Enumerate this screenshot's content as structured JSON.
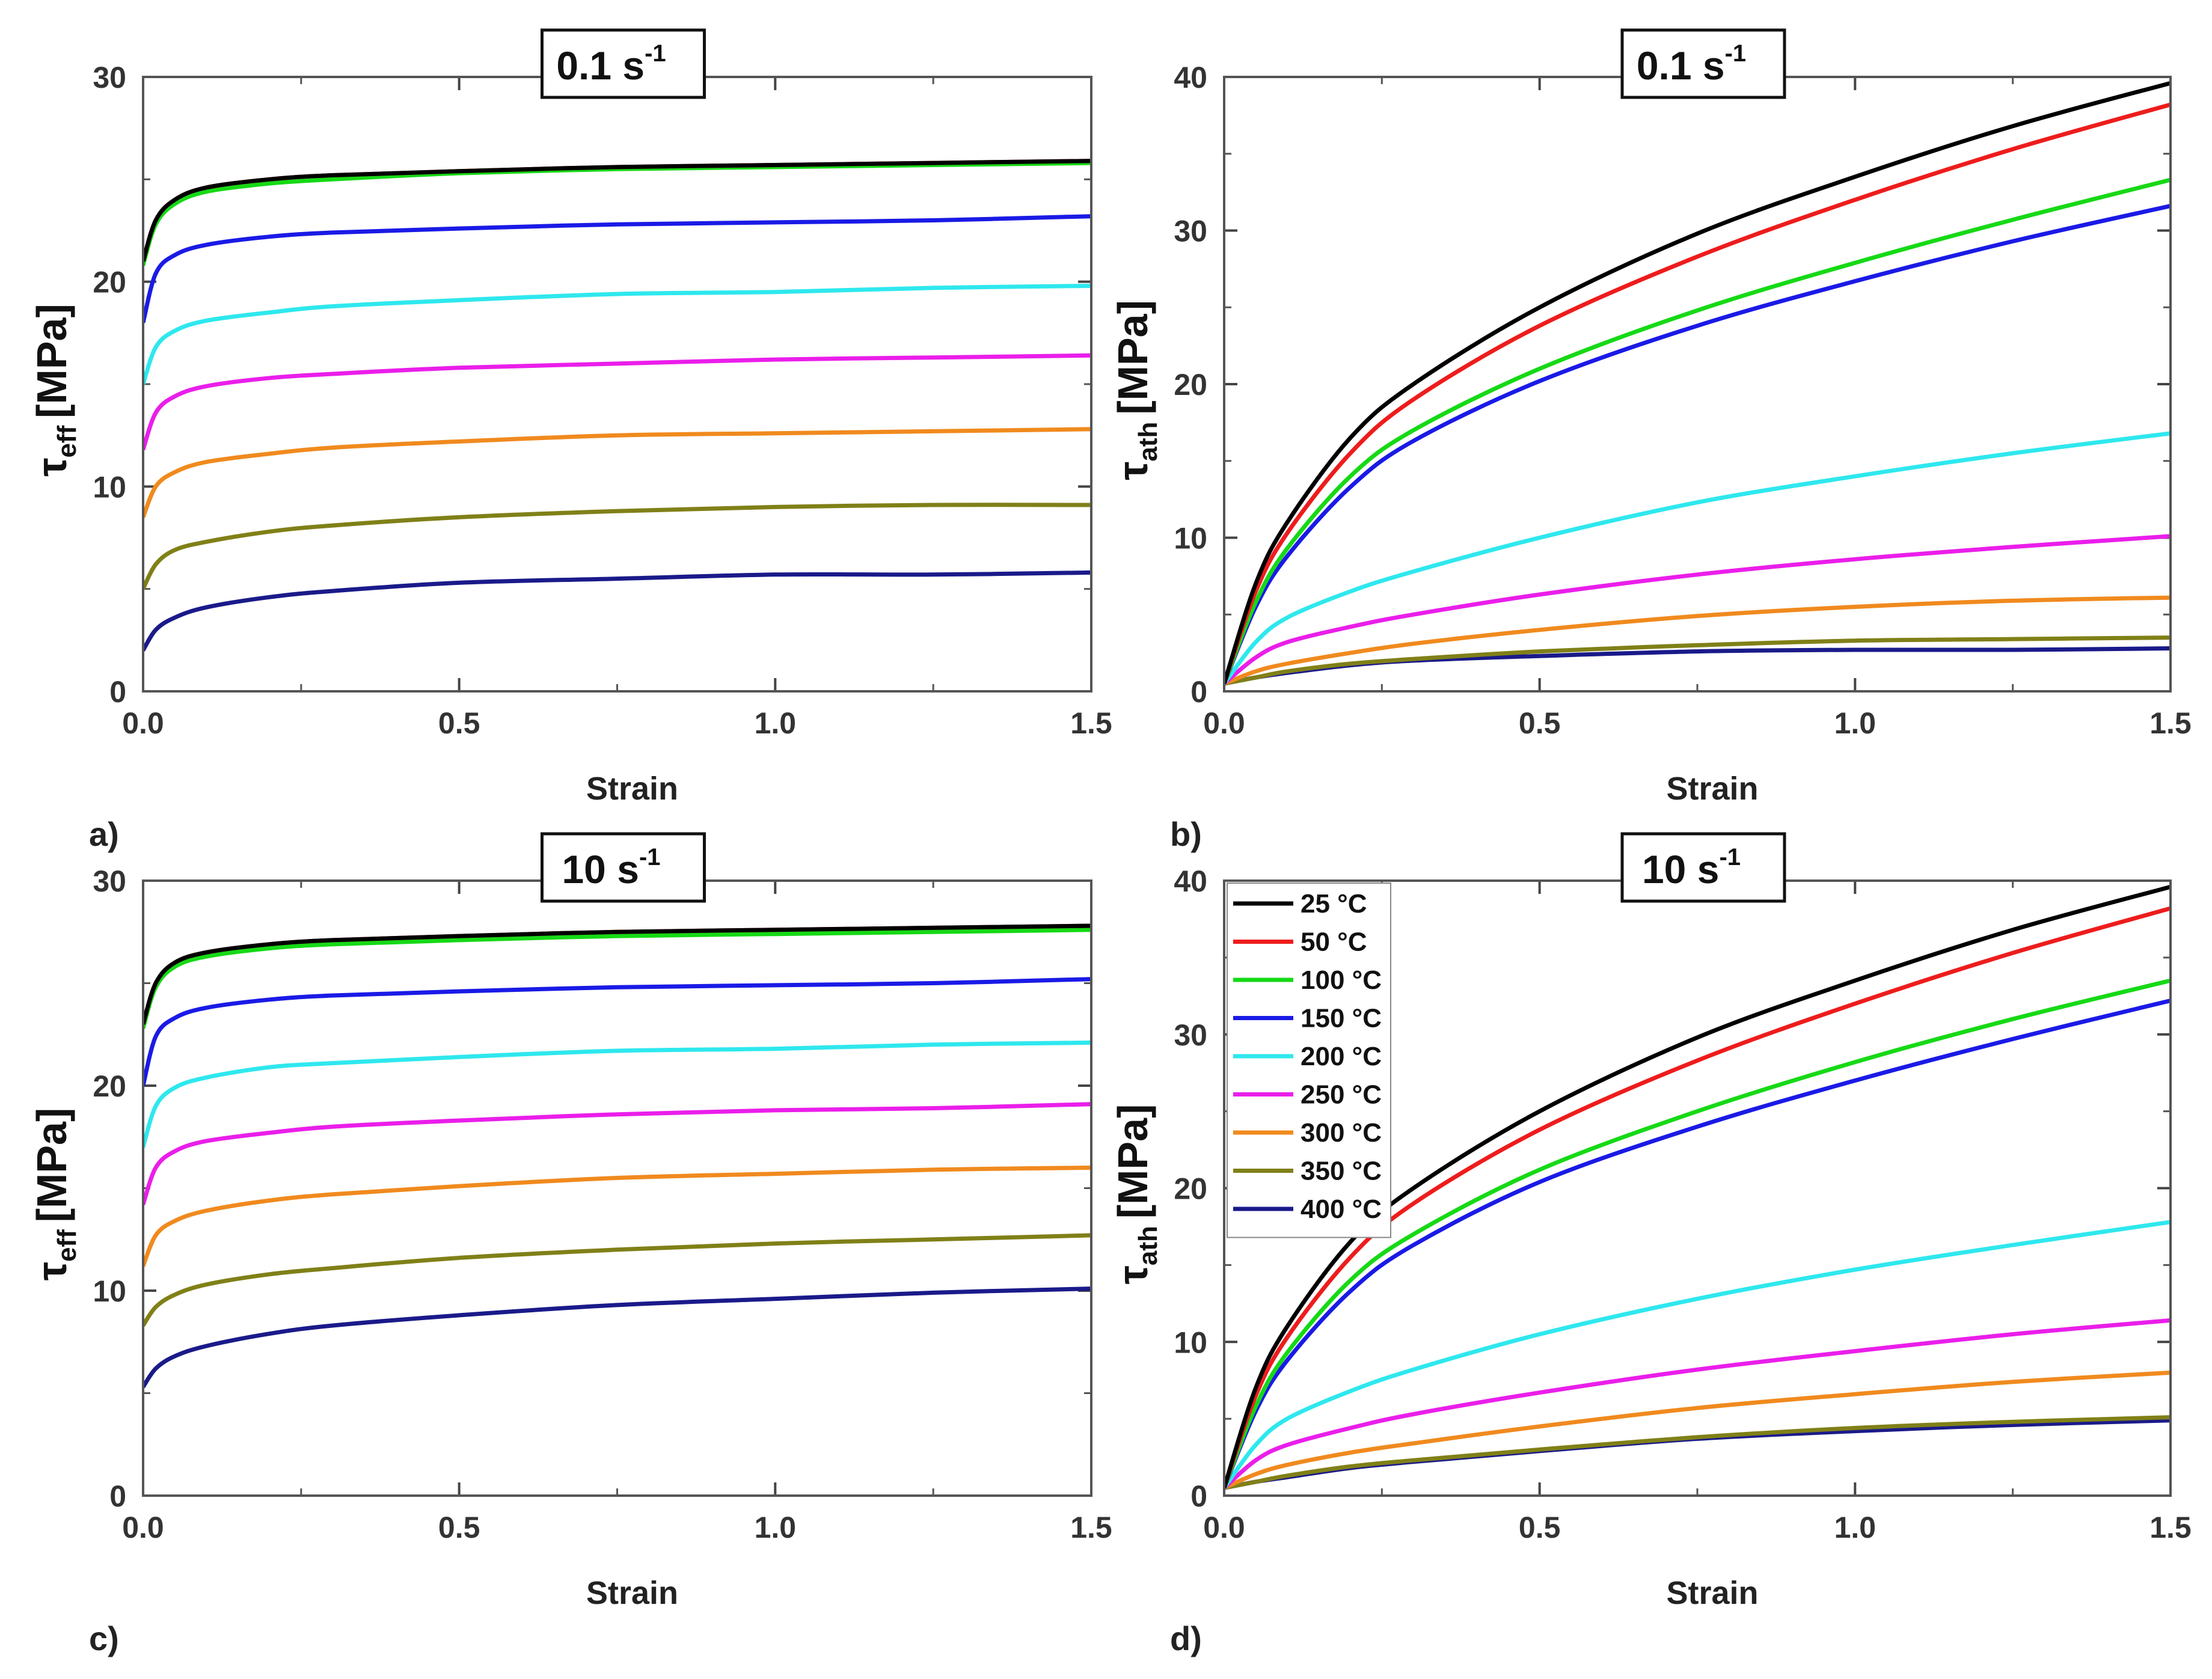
{
  "chart_data": [
    {
      "type": "line",
      "panel_label": "a)",
      "title": "0.1 s",
      "title_sup": "-1",
      "xlabel": "Strain",
      "ylabel_symbol": "τ",
      "ylabel_sub": "eff",
      "ylabel_unit": "[MPa]",
      "xlim": [
        0,
        1.5
      ],
      "ylim": [
        0,
        30
      ],
      "xticks": [
        "0.0",
        "0.5",
        "1.0",
        "1.5"
      ],
      "yticks": [
        "0",
        "10",
        "20",
        "30"
      ],
      "x": [
        0.0,
        0.02,
        0.05,
        0.1,
        0.2,
        0.3,
        0.5,
        0.75,
        1.0,
        1.25,
        1.5
      ],
      "series": [
        {
          "name": "25 °C",
          "color": "#000000",
          "values": [
            21.0,
            23.0,
            24.0,
            24.6,
            25.0,
            25.2,
            25.4,
            25.6,
            25.7,
            25.8,
            25.9
          ]
        },
        {
          "name": "50 °C",
          "color": "#ee1c1c",
          "values": [
            21.0,
            23.0,
            24.0,
            24.6,
            25.0,
            25.2,
            25.4,
            25.6,
            25.7,
            25.8,
            25.9
          ]
        },
        {
          "name": "100 °C",
          "color": "#16d916",
          "values": [
            20.8,
            22.8,
            23.8,
            24.4,
            24.8,
            25.0,
            25.3,
            25.5,
            25.6,
            25.7,
            25.8
          ]
        },
        {
          "name": "150 °C",
          "color": "#1a1ae6",
          "values": [
            18.0,
            20.4,
            21.3,
            21.8,
            22.2,
            22.4,
            22.6,
            22.8,
            22.9,
            23.0,
            23.2
          ]
        },
        {
          "name": "200 °C",
          "color": "#2ee8ee",
          "values": [
            15.0,
            16.8,
            17.6,
            18.1,
            18.5,
            18.8,
            19.1,
            19.4,
            19.5,
            19.7,
            19.8
          ]
        },
        {
          "name": "250 °C",
          "color": "#ea1eea",
          "values": [
            11.8,
            13.6,
            14.4,
            14.9,
            15.3,
            15.5,
            15.8,
            16.0,
            16.2,
            16.3,
            16.4
          ]
        },
        {
          "name": "300 °C",
          "color": "#f08a1e",
          "values": [
            8.5,
            10.0,
            10.7,
            11.2,
            11.6,
            11.9,
            12.2,
            12.5,
            12.6,
            12.7,
            12.8
          ]
        },
        {
          "name": "350 °C",
          "color": "#808018",
          "values": [
            5.0,
            6.2,
            6.9,
            7.3,
            7.8,
            8.1,
            8.5,
            8.8,
            9.0,
            9.1,
            9.1
          ]
        },
        {
          "name": "400 °C",
          "color": "#1a1a8a",
          "values": [
            2.0,
            3.0,
            3.6,
            4.1,
            4.6,
            4.9,
            5.3,
            5.5,
            5.7,
            5.7,
            5.8
          ]
        }
      ]
    },
    {
      "type": "line",
      "panel_label": "b)",
      "title": "0.1 s",
      "title_sup": "-1",
      "xlabel": "Strain",
      "ylabel_symbol": "τ",
      "ylabel_sub": "ath",
      "ylabel_unit": "[MPa]",
      "xlim": [
        0,
        1.5
      ],
      "ylim": [
        0,
        40
      ],
      "xticks": [
        "0.0",
        "0.5",
        "1.0",
        "1.5"
      ],
      "yticks": [
        "0",
        "10",
        "20",
        "30",
        "40"
      ],
      "x": [
        0.0,
        0.05,
        0.1,
        0.2,
        0.3,
        0.5,
        0.75,
        1.0,
        1.25,
        1.5
      ],
      "series": [
        {
          "name": "25 °C",
          "color": "#000000",
          "values": [
            0.5,
            7.0,
            11.0,
            16.5,
            20.0,
            25.0,
            29.8,
            33.5,
            36.8,
            39.6
          ]
        },
        {
          "name": "50 °C",
          "color": "#ee1c1c",
          "values": [
            0.5,
            6.5,
            10.3,
            15.5,
            19.0,
            23.8,
            28.3,
            32.0,
            35.3,
            38.2
          ]
        },
        {
          "name": "100 °C",
          "color": "#16d916",
          "values": [
            0.5,
            5.8,
            9.3,
            14.0,
            17.0,
            21.0,
            24.8,
            27.9,
            30.7,
            33.3
          ]
        },
        {
          "name": "150 °C",
          "color": "#1a1ae6",
          "values": [
            0.5,
            5.5,
            8.8,
            13.3,
            16.3,
            20.2,
            23.8,
            26.7,
            29.3,
            31.6
          ]
        },
        {
          "name": "200 °C",
          "color": "#2ee8ee",
          "values": [
            0.5,
            3.2,
            4.8,
            6.5,
            7.8,
            10.0,
            12.3,
            14.0,
            15.5,
            16.8
          ]
        },
        {
          "name": "250 °C",
          "color": "#ea1eea",
          "values": [
            0.5,
            2.2,
            3.2,
            4.2,
            5.0,
            6.3,
            7.6,
            8.6,
            9.4,
            10.1
          ]
        },
        {
          "name": "300 °C",
          "color": "#f08a1e",
          "values": [
            0.5,
            1.3,
            1.8,
            2.5,
            3.1,
            4.0,
            4.9,
            5.5,
            5.9,
            6.1
          ]
        },
        {
          "name": "350 °C",
          "color": "#808018",
          "values": [
            0.5,
            0.9,
            1.3,
            1.8,
            2.1,
            2.6,
            3.0,
            3.3,
            3.4,
            3.5
          ]
        },
        {
          "name": "400 °C",
          "color": "#1a1a8a",
          "values": [
            0.5,
            0.9,
            1.2,
            1.7,
            2.0,
            2.3,
            2.6,
            2.7,
            2.7,
            2.8
          ]
        }
      ]
    },
    {
      "type": "line",
      "panel_label": "c)",
      "title": "10 s",
      "title_sup": "-1",
      "xlabel": "Strain",
      "ylabel_symbol": "τ",
      "ylabel_sub": "eff",
      "ylabel_unit": "[MPa]",
      "xlim": [
        0,
        1.5
      ],
      "ylim": [
        0,
        30
      ],
      "xticks": [
        "0.0",
        "0.5",
        "1.0",
        "1.5"
      ],
      "yticks": [
        "0",
        "10",
        "20",
        "30"
      ],
      "x": [
        0.0,
        0.02,
        0.05,
        0.1,
        0.2,
        0.3,
        0.5,
        0.75,
        1.0,
        1.25,
        1.5
      ],
      "series": [
        {
          "name": "25 °C",
          "color": "#000000",
          "values": [
            23.0,
            25.0,
            26.0,
            26.5,
            26.9,
            27.1,
            27.3,
            27.5,
            27.6,
            27.7,
            27.8
          ]
        },
        {
          "name": "50 °C",
          "color": "#ee1c1c",
          "values": [
            23.0,
            25.0,
            26.0,
            26.5,
            26.9,
            27.1,
            27.3,
            27.5,
            27.6,
            27.7,
            27.8
          ]
        },
        {
          "name": "100 °C",
          "color": "#16d916",
          "values": [
            22.8,
            24.8,
            25.8,
            26.3,
            26.7,
            26.9,
            27.1,
            27.3,
            27.4,
            27.5,
            27.6
          ]
        },
        {
          "name": "150 °C",
          "color": "#1a1ae6",
          "values": [
            20.0,
            22.4,
            23.3,
            23.8,
            24.2,
            24.4,
            24.6,
            24.8,
            24.9,
            25.0,
            25.2
          ]
        },
        {
          "name": "200 °C",
          "color": "#2ee8ee",
          "values": [
            17.0,
            19.0,
            19.9,
            20.4,
            20.9,
            21.1,
            21.4,
            21.7,
            21.8,
            22.0,
            22.1
          ]
        },
        {
          "name": "250 °C",
          "color": "#ea1eea",
          "values": [
            14.2,
            16.0,
            16.8,
            17.3,
            17.7,
            18.0,
            18.3,
            18.6,
            18.8,
            18.9,
            19.1
          ]
        },
        {
          "name": "300 °C",
          "color": "#f08a1e",
          "values": [
            11.2,
            12.7,
            13.4,
            13.9,
            14.4,
            14.7,
            15.1,
            15.5,
            15.7,
            15.9,
            16.0
          ]
        },
        {
          "name": "350 °C",
          "color": "#808018",
          "values": [
            8.3,
            9.2,
            9.8,
            10.3,
            10.8,
            11.1,
            11.6,
            12.0,
            12.3,
            12.5,
            12.7
          ]
        },
        {
          "name": "400 °C",
          "color": "#1a1a8a",
          "values": [
            5.3,
            6.2,
            6.8,
            7.3,
            7.9,
            8.3,
            8.8,
            9.3,
            9.6,
            9.9,
            10.1
          ]
        }
      ]
    },
    {
      "type": "line",
      "panel_label": "d)",
      "title": "10 s",
      "title_sup": "-1",
      "xlabel": "Strain",
      "ylabel_symbol": "τ",
      "ylabel_sub": "ath",
      "ylabel_unit": "[MPa]",
      "xlim": [
        0,
        1.5
      ],
      "ylim": [
        0,
        40
      ],
      "xticks": [
        "0.0",
        "0.5",
        "1.0",
        "1.5"
      ],
      "yticks": [
        "0",
        "10",
        "20",
        "30",
        "40"
      ],
      "legend_position": "top-left",
      "x": [
        0.0,
        0.05,
        0.1,
        0.2,
        0.3,
        0.5,
        0.75,
        1.0,
        1.25,
        1.5
      ],
      "series": [
        {
          "name": "25 °C",
          "color": "#000000",
          "values": [
            0.5,
            7.0,
            11.0,
            16.5,
            20.0,
            25.0,
            29.8,
            33.5,
            36.8,
            39.6
          ]
        },
        {
          "name": "50 °C",
          "color": "#ee1c1c",
          "values": [
            0.5,
            6.5,
            10.3,
            15.5,
            19.0,
            23.8,
            28.3,
            32.0,
            35.3,
            38.2
          ]
        },
        {
          "name": "100 °C",
          "color": "#16d916",
          "values": [
            0.5,
            5.8,
            9.3,
            14.0,
            17.0,
            21.2,
            25.0,
            28.2,
            31.0,
            33.5
          ]
        },
        {
          "name": "150 °C",
          "color": "#1a1ae6",
          "values": [
            0.5,
            5.5,
            8.8,
            13.3,
            16.3,
            20.4,
            24.0,
            27.0,
            29.7,
            32.2
          ]
        },
        {
          "name": "200 °C",
          "color": "#2ee8ee",
          "values": [
            0.5,
            3.3,
            5.0,
            6.8,
            8.2,
            10.5,
            12.8,
            14.7,
            16.3,
            17.8
          ]
        },
        {
          "name": "250 °C",
          "color": "#ea1eea",
          "values": [
            0.5,
            2.3,
            3.3,
            4.4,
            5.3,
            6.7,
            8.2,
            9.4,
            10.5,
            11.4
          ]
        },
        {
          "name": "300 °C",
          "color": "#f08a1e",
          "values": [
            0.5,
            1.4,
            2.0,
            2.8,
            3.4,
            4.5,
            5.7,
            6.6,
            7.4,
            8.0
          ]
        },
        {
          "name": "350 °C",
          "color": "#808018",
          "values": [
            0.5,
            0.9,
            1.3,
            1.9,
            2.3,
            3.0,
            3.8,
            4.4,
            4.8,
            5.1
          ]
        },
        {
          "name": "400 °C",
          "color": "#1a1a8a",
          "values": [
            0.5,
            0.9,
            1.2,
            1.8,
            2.2,
            2.9,
            3.7,
            4.2,
            4.6,
            4.9
          ]
        }
      ]
    }
  ]
}
